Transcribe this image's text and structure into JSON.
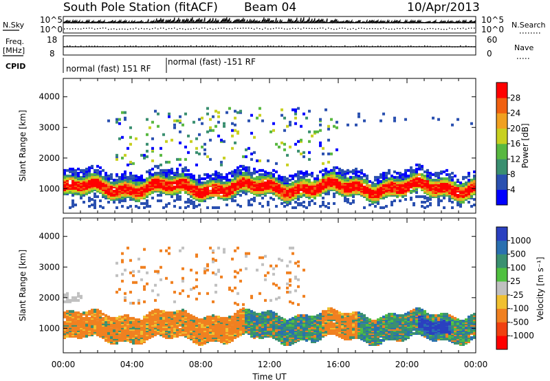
{
  "header": {
    "station": "South Pole Station (fitACF)",
    "beam": "Beam 04",
    "date": "10/Apr/2013"
  },
  "params": {
    "nsky_label": "N.Sky",
    "nsearch_label": "N.Search",
    "freq_label_1": "Freq.",
    "freq_label_2": "[MHz]",
    "nave_label": "Nave",
    "cpid_label": "CPID",
    "nsky_ticks": [
      "10^5",
      "10^0"
    ],
    "nsearch_ticks": [
      "10^5",
      "10^0"
    ],
    "freq_ticks": [
      "18",
      "8"
    ],
    "nave_ticks": [
      "60",
      "0"
    ],
    "cpid_segments": [
      {
        "label": "normal (fast) 151 RF",
        "start_hour": 0
      },
      {
        "label": "normal (fast) -151 RF",
        "start_hour": 6
      }
    ]
  },
  "chart_data": [
    {
      "type": "heatmap",
      "name": "power",
      "xlabel": "Time UT",
      "ylabel": "Slant Range [km]",
      "xlim": [
        0,
        24
      ],
      "ylim": [
        200,
        4600
      ],
      "y_ticks": [
        1000,
        2000,
        3000,
        4000
      ],
      "x_tick_labels": [
        "00:00",
        "04:00",
        "08:00",
        "12:00",
        "16:00",
        "20:00",
        "00:00"
      ],
      "colorbar": {
        "label": "Power [dB]",
        "ticks": [
          4,
          8,
          12,
          16,
          20,
          24,
          28
        ],
        "colors": [
          "#0000ff",
          "#2a50b0",
          "#3a8f70",
          "#58b840",
          "#c8d020",
          "#f0a020",
          "#f06010",
          "#ff0000"
        ]
      }
    },
    {
      "type": "heatmap",
      "name": "velocity",
      "xlabel": "Time UT",
      "ylabel": "Slant Range [km]",
      "xlim": [
        0,
        24
      ],
      "ylim": [
        200,
        4600
      ],
      "y_ticks": [
        1000,
        2000,
        3000,
        4000
      ],
      "x_tick_labels": [
        "00:00",
        "04:00",
        "08:00",
        "12:00",
        "16:00",
        "20:00",
        "00:00"
      ],
      "colorbar": {
        "label": "Velocity [m s⁻¹]",
        "ticks": [
          1000,
          500,
          100,
          25,
          -25,
          -100,
          -500,
          -1000
        ],
        "colors": [
          "#2a40c0",
          "#2a70b0",
          "#3a9070",
          "#50c040",
          "#c0c0c0",
          "#f0c030",
          "#f08020",
          "#f04010",
          "#ff0000"
        ]
      }
    }
  ]
}
